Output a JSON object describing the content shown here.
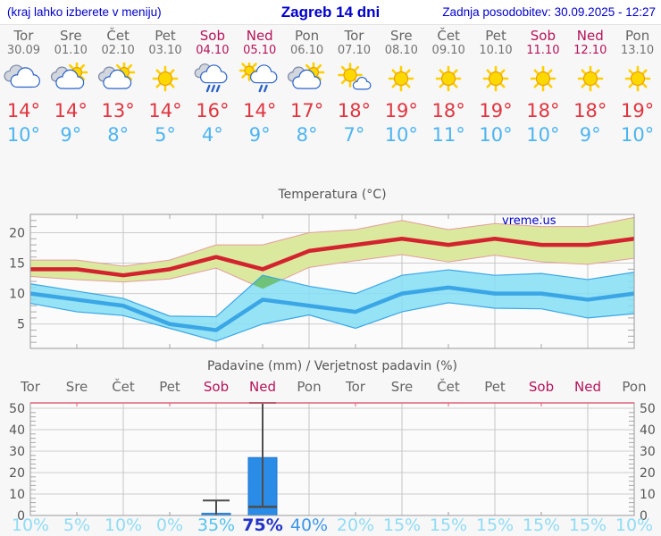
{
  "header": {
    "left_note": "(kraj lahko izberete v meniju)",
    "title": "Zagreb 14 dni",
    "updated": "Zadnja posodobitev: 30.09.2025 - 12:27"
  },
  "days": [
    {
      "name": "Tor",
      "date": "30.09",
      "weekend": false,
      "icon": "cloudy",
      "high": 14,
      "low": 10,
      "precip_prob": 10
    },
    {
      "name": "Sre",
      "date": "01.10",
      "weekend": false,
      "icon": "partly-cloudy",
      "high": 14,
      "low": 9,
      "precip_prob": 5
    },
    {
      "name": "Čet",
      "date": "02.10",
      "weekend": false,
      "icon": "partly-cloudy",
      "high": 13,
      "low": 8,
      "precip_prob": 10
    },
    {
      "name": "Pet",
      "date": "03.10",
      "weekend": false,
      "icon": "sunny",
      "high": 14,
      "low": 5,
      "precip_prob": 0
    },
    {
      "name": "Sob",
      "date": "04.10",
      "weekend": true,
      "icon": "rain",
      "high": 16,
      "low": 4,
      "precip_prob": 35
    },
    {
      "name": "Ned",
      "date": "05.10",
      "weekend": true,
      "icon": "sun-shower",
      "high": 14,
      "low": 9,
      "precip_prob": 75
    },
    {
      "name": "Pon",
      "date": "06.10",
      "weekend": false,
      "icon": "partly-cloudy",
      "high": 17,
      "low": 8,
      "precip_prob": 40
    },
    {
      "name": "Tor",
      "date": "07.10",
      "weekend": false,
      "icon": "mostly-sunny",
      "high": 18,
      "low": 7,
      "precip_prob": 20
    },
    {
      "name": "Sre",
      "date": "08.10",
      "weekend": false,
      "icon": "sunny",
      "high": 19,
      "low": 10,
      "precip_prob": 15
    },
    {
      "name": "Čet",
      "date": "09.10",
      "weekend": false,
      "icon": "sunny",
      "high": 18,
      "low": 11,
      "precip_prob": 15
    },
    {
      "name": "Pet",
      "date": "10.10",
      "weekend": false,
      "icon": "sunny",
      "high": 19,
      "low": 10,
      "precip_prob": 15
    },
    {
      "name": "Sob",
      "date": "11.10",
      "weekend": true,
      "icon": "sunny",
      "high": 18,
      "low": 10,
      "precip_prob": 15
    },
    {
      "name": "Ned",
      "date": "12.10",
      "weekend": true,
      "icon": "sunny",
      "high": 18,
      "low": 9,
      "precip_prob": 15
    },
    {
      "name": "Pon",
      "date": "13.10",
      "weekend": false,
      "icon": "sunny",
      "high": 19,
      "low": 10,
      "precip_prob": 10
    }
  ],
  "chart_data": [
    {
      "type": "line",
      "title": "Temperatura (°C)",
      "watermark": "vreme.us",
      "x_labels": [
        "Tor 30.09",
        "Sre 01.10",
        "Čet 02.10",
        "Pet 03.10",
        "Sob 04.10",
        "Ned 05.10",
        "Pon 06.10",
        "Tor 07.10",
        "Sre 08.10",
        "Čet 09.10",
        "Pet 10.10",
        "Sob 11.10",
        "Ned 12.10",
        "Pon 13.10"
      ],
      "ylim": [
        1,
        23
      ],
      "y_ticks": [
        5,
        10,
        15,
        20
      ],
      "grid_x_indices": [
        2,
        4,
        6,
        8,
        10,
        12
      ],
      "series": [
        {
          "name": "max_temp",
          "role": "line",
          "values": [
            14,
            14,
            13,
            14,
            16,
            14,
            17,
            18,
            19,
            18,
            19,
            18,
            18,
            19
          ]
        },
        {
          "name": "max_range_upper",
          "role": "band-edge",
          "values": [
            15.5,
            15.5,
            14.5,
            15.5,
            18,
            18,
            20,
            20.5,
            22,
            20.5,
            21.5,
            21,
            21,
            22.5
          ]
        },
        {
          "name": "max_range_lower",
          "role": "band-edge",
          "values": [
            12.8,
            12.3,
            11.9,
            12.4,
            14.2,
            10.8,
            14.3,
            15.4,
            16.4,
            15.2,
            16.3,
            15.2,
            14.8,
            15.8
          ]
        },
        {
          "name": "min_temp",
          "role": "line",
          "values": [
            10,
            9,
            8,
            5,
            4,
            9,
            8,
            7,
            10,
            11,
            10,
            10,
            9,
            10
          ]
        },
        {
          "name": "min_range_upper",
          "role": "band-edge",
          "values": [
            11.6,
            10.4,
            9.2,
            6.3,
            6.2,
            13,
            11.2,
            10,
            13,
            13.9,
            13,
            13.3,
            12.3,
            13.5
          ]
        },
        {
          "name": "min_range_lower",
          "role": "band-edge",
          "values": [
            8.4,
            7,
            6.4,
            4.3,
            2.2,
            5,
            6.5,
            4.3,
            7,
            8.5,
            7.6,
            7.5,
            6,
            6.7
          ]
        }
      ]
    },
    {
      "type": "bar",
      "title": "Padavine (mm) / Verjetnost padavin (%)",
      "categories": [
        "Tor",
        "Sre",
        "Čet",
        "Pet",
        "Sob",
        "Ned",
        "Pon",
        "Tor",
        "Sre",
        "Čet",
        "Pet",
        "Sob",
        "Ned",
        "Pon"
      ],
      "weekend_indices": [
        4,
        5,
        11,
        12
      ],
      "values": [
        0,
        0,
        0,
        0,
        1,
        27,
        0,
        0,
        0,
        0,
        0,
        0,
        0,
        0
      ],
      "whiskers": {
        "4": [
          0,
          7
        ],
        "5": [
          4,
          52.5
        ]
      },
      "probabilities": [
        10,
        5,
        10,
        0,
        35,
        75,
        40,
        20,
        15,
        15,
        15,
        15,
        15,
        10
      ],
      "ylim": [
        0,
        52.5
      ],
      "y_ticks": [
        0,
        10,
        20,
        30,
        40,
        50
      ]
    }
  ],
  "colors": {
    "header_blue": "#0000cc",
    "weekday": "#666666",
    "weekend": "#b5135b",
    "high_temp": "#e03540",
    "low_temp": "#4db4f0",
    "max_line": "#d2232e",
    "max_band": "#dbe99e",
    "max_band_edge": "#e59c9c",
    "min_line": "#3ba6e6",
    "min_band": "rgba(132,222,245,0.85)",
    "overlap": "#6cc06c",
    "grid": "#cccccc",
    "axis": "#999999",
    "tick": "#aaaaaa",
    "label": "#555555",
    "plot_bg": "#fbfbfb",
    "bar": "#2b8ce8",
    "bar_stroke": "#1d74c8",
    "whisker": "#4d4d4d",
    "precip_top": "#e0607a",
    "prob_low": "#8fdcf6",
    "prob_35": "#54c2ef",
    "prob_40": "#3e97e8",
    "prob_75": "#2434c8",
    "sun_fill": "#ffd800",
    "sun_stroke": "#e8a000",
    "sun_ray": "#ffcf00",
    "cloud_white": "#ffffff",
    "cloud_white_stroke": "#2a62c8",
    "cloud_gray": "#d2d6dd",
    "cloud_gray_stroke": "#7d8aa8",
    "rain": "#2a62c8"
  }
}
